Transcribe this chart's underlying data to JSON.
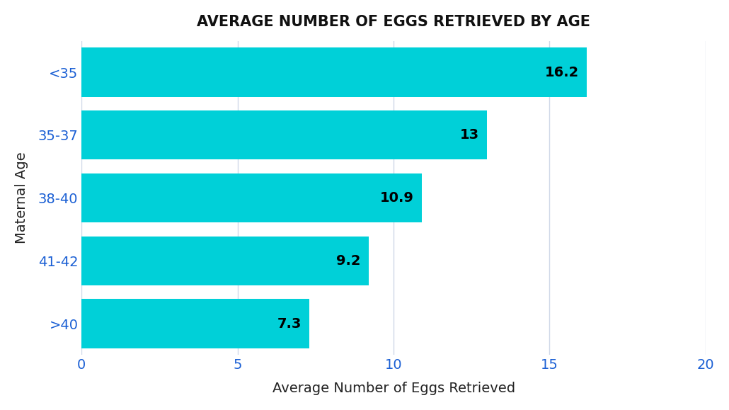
{
  "title": "AVERAGE NUMBER OF EGGS RETRIEVED BY AGE",
  "categories": [
    "<35",
    "35-37",
    "38-40",
    "41-42",
    ">40"
  ],
  "values": [
    16.2,
    13,
    10.9,
    9.2,
    7.3
  ],
  "bar_color": "#00D0D8",
  "label_color": "#000000",
  "ytick_color": "#1A5FD4",
  "xtick_color": "#1A5FD4",
  "xlabel": "Average Number of Eggs Retrieved",
  "ylabel": "Maternal Age",
  "xlim": [
    0,
    20
  ],
  "xticks": [
    0,
    5,
    10,
    15,
    20
  ],
  "background_color": "#FFFFFF",
  "title_fontsize": 15,
  "axis_label_fontsize": 14,
  "tick_fontsize": 14,
  "bar_label_fontsize": 14,
  "ytick_fontsize": 14,
  "grid_color": "#D0D8E8",
  "bar_height": 0.78
}
